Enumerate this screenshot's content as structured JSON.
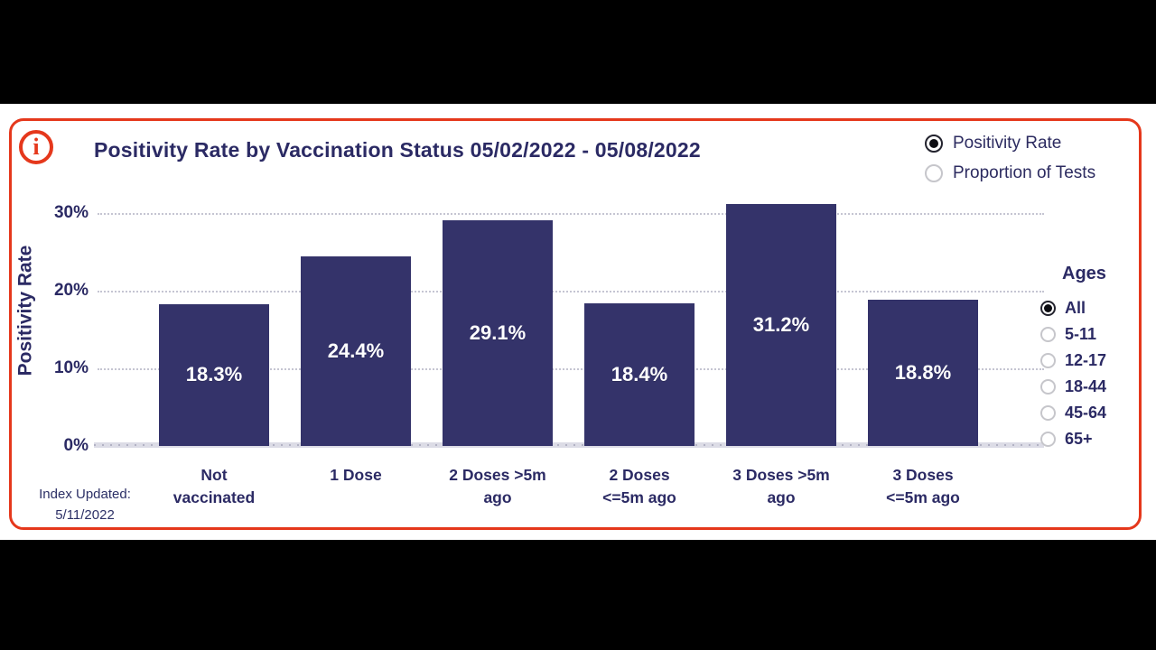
{
  "icons": {
    "info": "i"
  },
  "header": {
    "title": "Positivity Rate by Vaccination Status 05/02/2022 - 05/08/2022"
  },
  "metric_options": [
    {
      "label": "Positivity Rate",
      "selected": true
    },
    {
      "label": "Proportion of Tests",
      "selected": false
    }
  ],
  "ages": {
    "title": "Ages",
    "options": [
      {
        "label": "All",
        "selected": true
      },
      {
        "label": "5-11",
        "selected": false
      },
      {
        "label": "12-17",
        "selected": false
      },
      {
        "label": "18-44",
        "selected": false
      },
      {
        "label": "45-64",
        "selected": false
      },
      {
        "label": "65+",
        "selected": false
      }
    ]
  },
  "footer": {
    "updated_label": "Index Updated:",
    "updated_date": "5/11/2022"
  },
  "chart_data": {
    "type": "bar",
    "title": "Positivity Rate by Vaccination Status 05/02/2022 - 05/08/2022",
    "categories": [
      "Not vaccinated",
      "1 Dose",
      "2 Doses >5m ago",
      "2 Doses <=5m ago",
      "3 Doses >5m ago",
      "3 Doses <=5m ago"
    ],
    "category_display": [
      [
        "Not",
        "vaccinated"
      ],
      [
        "1 Dose"
      ],
      [
        "2 Doses >5m",
        "ago"
      ],
      [
        "2 Doses",
        "<=5m ago"
      ],
      [
        "3 Doses >5m",
        "ago"
      ],
      [
        "3 Doses",
        "<=5m ago"
      ]
    ],
    "values": [
      18.3,
      24.4,
      29.1,
      18.4,
      31.2,
      18.8
    ],
    "value_labels": [
      "18.3%",
      "24.4%",
      "29.1%",
      "18.4%",
      "31.2%",
      "18.8%"
    ],
    "xlabel": "",
    "ylabel": "Positivity Rate",
    "ylim": [
      0,
      35
    ],
    "yticks": [
      {
        "value": 0,
        "label": "0%"
      },
      {
        "value": 10,
        "label": "10%"
      },
      {
        "value": 20,
        "label": "20%"
      },
      {
        "value": 30,
        "label": "30%"
      }
    ],
    "grid": "horizontal-dotted",
    "legend_position": "top-right",
    "bar_color": "#34336a",
    "value_label_color": "#ffffff"
  },
  "colors": {
    "accent_red": "#e5381c",
    "navy": "#2b2a64",
    "bar": "#34336a",
    "grid_dot": "#c5c5d2",
    "axis_band": "#dcdce6"
  }
}
